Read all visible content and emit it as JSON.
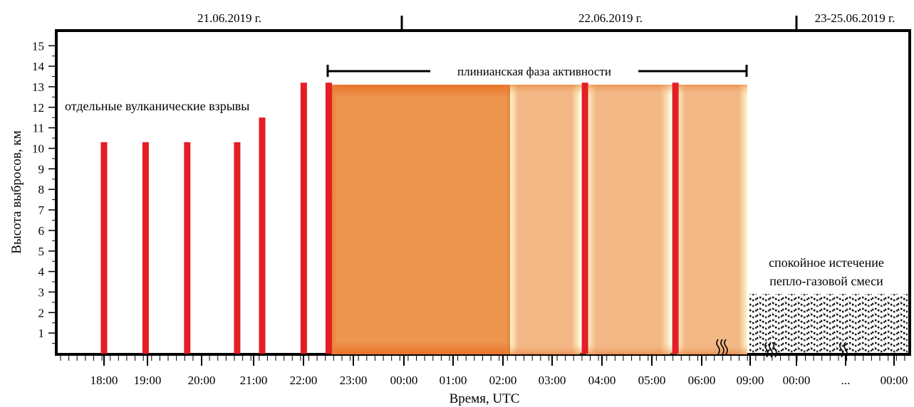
{
  "chart_data": {
    "type": "bar",
    "ylabel": "Высота выбросов, км",
    "xlabel": "Время, UTC",
    "ylim": [
      0,
      15
    ],
    "y_ticks": [
      1,
      2,
      3,
      4,
      5,
      6,
      7,
      8,
      9,
      10,
      11,
      12,
      13,
      14,
      15
    ],
    "date_labels": [
      "21.06.2019 г.",
      "22.06.2019 г.",
      "23-25.06.2019 г."
    ],
    "x_tick_labels": [
      "18:00",
      "19:00",
      "20:00",
      "21:00",
      "22:00",
      "23:00",
      "00:00",
      "01:00",
      "02:00",
      "03:00",
      "04:00",
      "05:00",
      "06:00",
      "09:00",
      "00:00",
      "...",
      "00:00"
    ],
    "explosions": [
      {
        "time": "18:00",
        "height": 10.3
      },
      {
        "time": "18:50",
        "height": 10.3
      },
      {
        "time": "19:40",
        "height": 10.3
      },
      {
        "time": "20:40",
        "height": 10.3
      },
      {
        "time": "21:10",
        "height": 11.5
      },
      {
        "time": "22:00",
        "height": 13.2
      },
      {
        "time": "22:30",
        "height": 13.2
      },
      {
        "time": "03:40",
        "height": 13.2
      },
      {
        "time": "05:30",
        "height": 13.2
      }
    ],
    "plinian_phase": {
      "label": "плинианская фаза активности",
      "start": "22:30",
      "end": "09:00",
      "height": 13.2
    },
    "annotations": {
      "explosions_label": "отдельные вулканические взрывы",
      "quiet_label_line1": "спокойное истечение",
      "quiet_label_line2": "пепло-газовой смеси"
    },
    "colors": {
      "bar": "#e31e24",
      "plinian_dark": "#ee9650",
      "plinian_light": "#f2b886",
      "glow": "#fff7d0"
    }
  }
}
